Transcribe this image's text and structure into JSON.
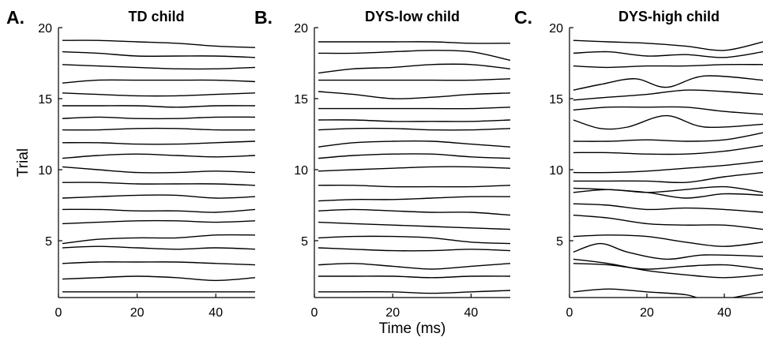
{
  "chart_data": [
    {
      "type": "line",
      "letter": "A.",
      "title": "TD child",
      "ylabel": "Trial",
      "xlabel": "",
      "xlim": [
        0,
        50
      ],
      "ylim": [
        1,
        20
      ],
      "xticks": [
        "0",
        "20",
        "40"
      ],
      "yticks": [
        "5",
        "10",
        "15",
        "20"
      ],
      "line_color": "#000000",
      "series": [
        {
          "trial": 1,
          "x": [
            1,
            10,
            20,
            30,
            40,
            50
          ],
          "y": [
            1.4,
            1.4,
            1.4,
            1.4,
            1.4,
            1.4
          ]
        },
        {
          "trial": 2,
          "x": [
            1,
            10,
            20,
            30,
            40,
            50
          ],
          "y": [
            2.3,
            2.4,
            2.5,
            2.4,
            2.2,
            2.4
          ]
        },
        {
          "trial": 3,
          "x": [
            1,
            10,
            20,
            30,
            40,
            50
          ],
          "y": [
            3.4,
            3.5,
            3.5,
            3.5,
            3.4,
            3.3
          ]
        },
        {
          "trial": 4,
          "x": [
            1,
            10,
            20,
            30,
            40,
            50
          ],
          "y": [
            4.5,
            4.6,
            4.5,
            4.4,
            4.5,
            4.4
          ]
        },
        {
          "trial": 5,
          "x": [
            1,
            10,
            20,
            30,
            40,
            50
          ],
          "y": [
            4.8,
            5.1,
            5.2,
            5.2,
            5.4,
            5.4
          ]
        },
        {
          "trial": 6,
          "x": [
            1,
            10,
            20,
            30,
            40,
            50
          ],
          "y": [
            6.2,
            6.3,
            6.4,
            6.4,
            6.3,
            6.4
          ]
        },
        {
          "trial": 7,
          "x": [
            1,
            10,
            20,
            30,
            40,
            50
          ],
          "y": [
            7.2,
            7.2,
            7.1,
            7.1,
            7.0,
            7.2
          ]
        },
        {
          "trial": 8,
          "x": [
            1,
            10,
            20,
            30,
            40,
            50
          ],
          "y": [
            8.0,
            8.1,
            8.2,
            8.2,
            8.0,
            8.1
          ]
        },
        {
          "trial": 9,
          "x": [
            1,
            10,
            20,
            30,
            40,
            50
          ],
          "y": [
            9.1,
            9.1,
            9.0,
            9.0,
            9.0,
            8.9
          ]
        },
        {
          "trial": 10,
          "x": [
            1,
            10,
            20,
            30,
            40,
            50
          ],
          "y": [
            10.2,
            10.0,
            9.8,
            9.8,
            9.9,
            9.8
          ]
        },
        {
          "trial": 11,
          "x": [
            1,
            10,
            20,
            30,
            40,
            50
          ],
          "y": [
            10.8,
            11.0,
            11.1,
            11.0,
            10.9,
            11.0
          ]
        },
        {
          "trial": 12,
          "x": [
            1,
            10,
            20,
            30,
            40,
            50
          ],
          "y": [
            11.9,
            11.9,
            11.8,
            11.8,
            11.9,
            12.0
          ]
        },
        {
          "trial": 13,
          "x": [
            1,
            10,
            20,
            30,
            40,
            50
          ],
          "y": [
            12.8,
            12.8,
            12.9,
            12.9,
            12.8,
            12.8
          ]
        },
        {
          "trial": 14,
          "x": [
            1,
            10,
            20,
            30,
            40,
            50
          ],
          "y": [
            13.6,
            13.7,
            13.6,
            13.6,
            13.7,
            13.7
          ]
        },
        {
          "trial": 15,
          "x": [
            1,
            10,
            20,
            30,
            40,
            50
          ],
          "y": [
            14.5,
            14.5,
            14.5,
            14.4,
            14.5,
            14.5
          ]
        },
        {
          "trial": 16,
          "x": [
            1,
            10,
            20,
            30,
            40,
            50
          ],
          "y": [
            15.4,
            15.3,
            15.2,
            15.2,
            15.3,
            15.4
          ]
        },
        {
          "trial": 17,
          "x": [
            1,
            10,
            20,
            30,
            40,
            50
          ],
          "y": [
            16.1,
            16.3,
            16.3,
            16.3,
            16.3,
            16.2
          ]
        },
        {
          "trial": 18,
          "x": [
            1,
            10,
            20,
            30,
            40,
            50
          ],
          "y": [
            17.4,
            17.3,
            17.2,
            17.1,
            17.1,
            17.2
          ]
        },
        {
          "trial": 19,
          "x": [
            1,
            10,
            20,
            30,
            40,
            50
          ],
          "y": [
            18.3,
            18.2,
            18.0,
            18.0,
            18.0,
            17.9
          ]
        },
        {
          "trial": 20,
          "x": [
            1,
            10,
            20,
            30,
            40,
            50
          ],
          "y": [
            19.1,
            19.1,
            19.0,
            18.9,
            18.7,
            18.6
          ]
        }
      ]
    },
    {
      "type": "line",
      "letter": "B.",
      "title": "DYS-low child",
      "ylabel": "",
      "xlabel": "Time (ms)",
      "xlim": [
        0,
        50
      ],
      "ylim": [
        1,
        20
      ],
      "xticks": [
        "0",
        "20",
        "40"
      ],
      "yticks": [
        "5",
        "10",
        "15",
        "20"
      ],
      "line_color": "#000000",
      "series": [
        {
          "trial": 1,
          "x": [
            1,
            10,
            20,
            30,
            40,
            50
          ],
          "y": [
            1.4,
            1.4,
            1.4,
            1.3,
            1.4,
            1.5
          ]
        },
        {
          "trial": 2,
          "x": [
            1,
            10,
            20,
            30,
            40,
            50
          ],
          "y": [
            2.5,
            2.5,
            2.5,
            2.4,
            2.5,
            2.5
          ]
        },
        {
          "trial": 3,
          "x": [
            1,
            10,
            20,
            30,
            40,
            50
          ],
          "y": [
            3.3,
            3.4,
            3.2,
            3.0,
            3.2,
            3.4
          ]
        },
        {
          "trial": 4,
          "x": [
            1,
            10,
            20,
            30,
            40,
            50
          ],
          "y": [
            4.5,
            4.4,
            4.3,
            4.3,
            4.4,
            4.3
          ]
        },
        {
          "trial": 5,
          "x": [
            1,
            10,
            20,
            30,
            40,
            50
          ],
          "y": [
            5.2,
            5.3,
            5.3,
            5.2,
            4.9,
            4.8
          ]
        },
        {
          "trial": 6,
          "x": [
            1,
            10,
            20,
            30,
            40,
            50
          ],
          "y": [
            6.3,
            6.2,
            6.1,
            6.0,
            5.9,
            5.8
          ]
        },
        {
          "trial": 7,
          "x": [
            1,
            10,
            20,
            30,
            40,
            50
          ],
          "y": [
            7.1,
            7.2,
            7.1,
            7.0,
            7.0,
            6.8
          ]
        },
        {
          "trial": 8,
          "x": [
            1,
            10,
            20,
            30,
            40,
            50
          ],
          "y": [
            7.8,
            7.9,
            7.9,
            8.0,
            8.1,
            8.1
          ]
        },
        {
          "trial": 9,
          "x": [
            1,
            10,
            20,
            30,
            40,
            50
          ],
          "y": [
            8.9,
            8.9,
            8.8,
            8.8,
            8.8,
            8.9
          ]
        },
        {
          "trial": 10,
          "x": [
            1,
            10,
            20,
            30,
            40,
            50
          ],
          "y": [
            9.9,
            10.0,
            10.1,
            10.2,
            10.2,
            10.1
          ]
        },
        {
          "trial": 11,
          "x": [
            1,
            10,
            20,
            30,
            40,
            50
          ],
          "y": [
            10.8,
            11.0,
            11.1,
            11.1,
            10.9,
            10.8
          ]
        },
        {
          "trial": 12,
          "x": [
            1,
            10,
            20,
            30,
            40,
            50
          ],
          "y": [
            11.6,
            11.9,
            12.0,
            12.0,
            11.8,
            11.6
          ]
        },
        {
          "trial": 13,
          "x": [
            1,
            10,
            20,
            30,
            40,
            50
          ],
          "y": [
            12.8,
            12.9,
            12.9,
            12.8,
            12.8,
            12.9
          ]
        },
        {
          "trial": 14,
          "x": [
            1,
            10,
            20,
            30,
            40,
            50
          ],
          "y": [
            13.5,
            13.5,
            13.4,
            13.4,
            13.4,
            13.5
          ]
        },
        {
          "trial": 15,
          "x": [
            1,
            10,
            20,
            30,
            40,
            50
          ],
          "y": [
            14.3,
            14.3,
            14.3,
            14.3,
            14.3,
            14.4
          ]
        },
        {
          "trial": 16,
          "x": [
            1,
            10,
            20,
            30,
            40,
            50
          ],
          "y": [
            15.5,
            15.3,
            15.0,
            15.1,
            15.3,
            15.4
          ]
        },
        {
          "trial": 17,
          "x": [
            1,
            10,
            20,
            30,
            40,
            50
          ],
          "y": [
            16.3,
            16.3,
            16.3,
            16.3,
            16.3,
            16.4
          ]
        },
        {
          "trial": 18,
          "x": [
            1,
            10,
            20,
            30,
            40,
            50
          ],
          "y": [
            16.8,
            17.1,
            17.2,
            17.4,
            17.4,
            17.1
          ]
        },
        {
          "trial": 19,
          "x": [
            1,
            10,
            20,
            30,
            40,
            50
          ],
          "y": [
            18.2,
            18.2,
            18.3,
            18.4,
            18.3,
            17.7
          ]
        },
        {
          "trial": 20,
          "x": [
            1,
            10,
            20,
            30,
            40,
            50
          ],
          "y": [
            19.0,
            19.0,
            19.0,
            19.0,
            18.9,
            18.9
          ]
        }
      ]
    },
    {
      "type": "line",
      "letter": "C.",
      "title": "DYS-high child",
      "ylabel": "",
      "xlabel": "",
      "xlim": [
        0,
        50
      ],
      "ylim": [
        1,
        20
      ],
      "xticks": [
        "0",
        "20",
        "40"
      ],
      "yticks": [
        "5",
        "10",
        "15",
        "20"
      ],
      "line_color": "#000000",
      "series": [
        {
          "trial": 1,
          "x": [
            1,
            10,
            20,
            30,
            37,
            50
          ],
          "y": [
            1.4,
            1.6,
            1.4,
            1.2,
            0.8,
            1.4
          ]
        },
        {
          "trial": 2,
          "x": [
            1,
            10,
            20,
            30,
            40,
            50
          ],
          "y": [
            3.7,
            3.4,
            2.9,
            2.6,
            2.4,
            2.6
          ]
        },
        {
          "trial": 3,
          "x": [
            1,
            10,
            20,
            30,
            40,
            50
          ],
          "y": [
            3.4,
            3.3,
            3.0,
            3.2,
            3.3,
            3.0
          ]
        },
        {
          "trial": 4,
          "x": [
            1,
            8,
            15,
            25,
            35,
            50
          ],
          "y": [
            4.2,
            4.8,
            4.2,
            3.7,
            4.0,
            3.9
          ]
        },
        {
          "trial": 5,
          "x": [
            1,
            10,
            20,
            30,
            40,
            50
          ],
          "y": [
            5.3,
            5.4,
            5.3,
            4.9,
            4.6,
            4.9
          ]
        },
        {
          "trial": 6,
          "x": [
            1,
            10,
            20,
            30,
            40,
            50
          ],
          "y": [
            6.8,
            6.6,
            6.2,
            6.1,
            6.1,
            5.8
          ]
        },
        {
          "trial": 7,
          "x": [
            1,
            10,
            20,
            30,
            40,
            50
          ],
          "y": [
            7.6,
            7.5,
            7.2,
            7.3,
            7.2,
            7.0
          ]
        },
        {
          "trial": 8,
          "x": [
            1,
            10,
            20,
            30,
            40,
            50
          ],
          "y": [
            8.7,
            8.6,
            8.4,
            8.0,
            8.3,
            8.2
          ]
        },
        {
          "trial": 9,
          "x": [
            1,
            10,
            20,
            30,
            40,
            50
          ],
          "y": [
            8.4,
            8.6,
            8.4,
            8.6,
            8.8,
            8.4
          ]
        },
        {
          "trial": 10,
          "x": [
            1,
            10,
            20,
            30,
            40,
            50
          ],
          "y": [
            9.2,
            9.2,
            9.2,
            9.1,
            9.5,
            9.8
          ]
        },
        {
          "trial": 11,
          "x": [
            1,
            10,
            20,
            30,
            40,
            50
          ],
          "y": [
            9.8,
            9.8,
            9.9,
            10.1,
            10.3,
            10.6
          ]
        },
        {
          "trial": 12,
          "x": [
            1,
            10,
            20,
            30,
            40,
            50
          ],
          "y": [
            11.2,
            11.2,
            11.1,
            11.1,
            11.3,
            11.7
          ]
        },
        {
          "trial": 13,
          "x": [
            1,
            10,
            20,
            30,
            40,
            50
          ],
          "y": [
            12.0,
            12.0,
            12.1,
            12.0,
            12.1,
            12.6
          ]
        },
        {
          "trial": 14,
          "x": [
            1,
            8,
            15,
            25,
            35,
            50
          ],
          "y": [
            13.5,
            12.9,
            13.0,
            13.8,
            13.0,
            13.2
          ]
        },
        {
          "trial": 15,
          "x": [
            1,
            10,
            20,
            30,
            40,
            50
          ],
          "y": [
            14.2,
            14.4,
            14.4,
            14.4,
            14.1,
            13.9
          ]
        },
        {
          "trial": 16,
          "x": [
            1,
            10,
            20,
            30,
            40,
            50
          ],
          "y": [
            14.9,
            15.1,
            15.3,
            15.6,
            15.5,
            15.3
          ]
        },
        {
          "trial": 17,
          "x": [
            1,
            8,
            17,
            25,
            35,
            50
          ],
          "y": [
            15.6,
            16.0,
            16.4,
            15.8,
            16.6,
            16.3
          ]
        },
        {
          "trial": 18,
          "x": [
            1,
            10,
            20,
            30,
            40,
            50
          ],
          "y": [
            17.3,
            17.2,
            17.3,
            17.3,
            17.4,
            17.4
          ]
        },
        {
          "trial": 19,
          "x": [
            1,
            10,
            20,
            30,
            40,
            50
          ],
          "y": [
            18.2,
            18.3,
            18.0,
            18.1,
            17.9,
            18.3
          ]
        },
        {
          "trial": 20,
          "x": [
            1,
            10,
            20,
            30,
            40,
            50
          ],
          "y": [
            19.1,
            19.0,
            18.9,
            18.7,
            18.4,
            19.0
          ]
        }
      ]
    }
  ]
}
